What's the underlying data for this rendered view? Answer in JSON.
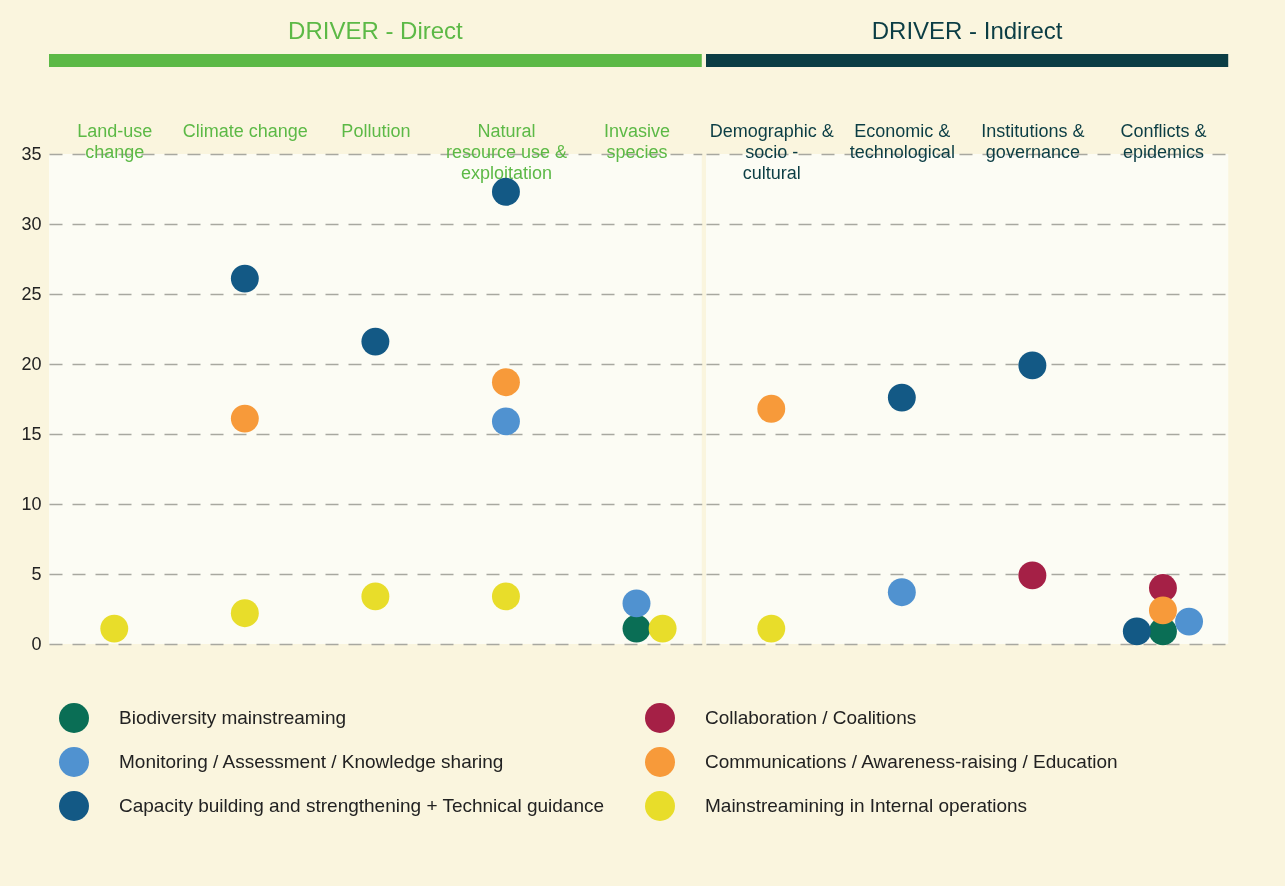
{
  "chart_data": [
    {
      "type": "scatter",
      "title": "DRIVER - Direct",
      "categories": [
        "Land-use change",
        "Climate change",
        "Pollution",
        "Natural resource use & exploitation",
        "Invasive species"
      ],
      "series": [
        {
          "name": "Biodiversity mainstreaming",
          "color": "#0a6e55",
          "values": [
            null,
            null,
            null,
            null,
            1.1
          ]
        },
        {
          "name": "Monitoring / Assessment / Knowledge sharing",
          "color": "#5092d0",
          "values": [
            null,
            null,
            null,
            15.9,
            2.9
          ]
        },
        {
          "name": "Communications / Awareness-raising / Education",
          "color": "#f79a3a",
          "values": [
            null,
            16.1,
            null,
            18.7,
            null
          ]
        },
        {
          "name": "Capacity building and strengthening + Technical guidance",
          "color": "#135985",
          "values": [
            null,
            26.1,
            21.6,
            32.3,
            null
          ]
        },
        {
          "name": "Mainstreamining in Internal operations",
          "color": "#e8dd2a",
          "values": [
            1.1,
            2.2,
            3.4,
            3.4,
            1.1
          ]
        }
      ],
      "ylim": [
        0,
        35
      ],
      "yticks": [
        0,
        5,
        10,
        15,
        20,
        25,
        30,
        35
      ],
      "grid": "y",
      "legend": "bottom",
      "marker": "circle"
    },
    {
      "type": "scatter",
      "title": "DRIVER - Indirect",
      "categories": [
        "Demographic & socio - cultural",
        "Economic & technological",
        "Institutions & governance",
        "Conflicts & epidemics"
      ],
      "series": [
        {
          "name": "Biodiversity mainstreaming",
          "color": "#0a6e55",
          "values": [
            null,
            null,
            null,
            0.9
          ]
        },
        {
          "name": "Collaboration / Coalitions",
          "color": "#a52046",
          "values": [
            null,
            null,
            4.9,
            4.0
          ]
        },
        {
          "name": "Monitoring / Assessment / Knowledge sharing",
          "color": "#5092d0",
          "values": [
            null,
            3.7,
            null,
            1.6
          ]
        },
        {
          "name": "Communications / Awareness-raising / Education",
          "color": "#f79a3a",
          "values": [
            16.8,
            null,
            null,
            2.4
          ]
        },
        {
          "name": "Capacity building and strengthening + Technical guidance",
          "color": "#135985",
          "values": [
            null,
            17.6,
            19.9,
            0.9
          ]
        },
        {
          "name": "Mainstreamining in Internal operations",
          "color": "#e8dd2a",
          "values": [
            1.1,
            null,
            null,
            null
          ]
        }
      ],
      "ylim": [
        0,
        35
      ],
      "yticks": [
        0,
        5,
        10,
        15,
        20,
        25,
        30,
        35
      ],
      "grid": "y",
      "legend": "bottom",
      "marker": "circle",
      "tick_labels": "x"
    }
  ]
}
